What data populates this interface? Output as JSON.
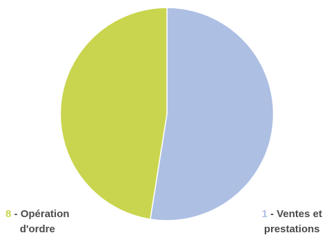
{
  "chart_data": {
    "type": "pie",
    "title": "",
    "slices": [
      {
        "number": "1",
        "separator": " - ",
        "line1": "Ventes et",
        "line2": "prestations",
        "value": 52.5,
        "color": "#adbfe3",
        "number_color": "#adbfe3"
      },
      {
        "number": "8",
        "separator": " - ",
        "line1": "Opération",
        "line2": "d'ordre",
        "value": 47.5,
        "color": "#c9d54e",
        "number_color": "#c9d54e"
      }
    ],
    "start_angle_deg": 0,
    "direction": "clockwise",
    "legend": "none",
    "label_color": "#4a4a4a"
  }
}
